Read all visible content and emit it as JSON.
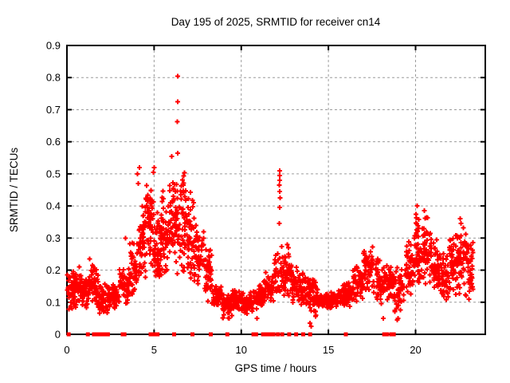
{
  "chart_data": {
    "type": "scatter",
    "title": "Day 195 of 2025, SRMTID for receiver cn14",
    "xlabel": "GPS time / hours",
    "ylabel": "SRMTID / TECUs",
    "xlim": [
      0,
      24
    ],
    "ylim": [
      0,
      0.9
    ],
    "xticks": [
      0,
      5,
      10,
      15,
      20
    ],
    "xtick_labels": [
      "0",
      "5",
      "10",
      "15",
      "20"
    ],
    "yticks": [
      0,
      0.1,
      0.2,
      0.3,
      0.4,
      0.5,
      0.6,
      0.7,
      0.8,
      0.9
    ],
    "ytick_labels": [
      "0",
      "0.1",
      "0.2",
      "0.3",
      "0.4",
      "0.5",
      "0.6",
      "0.7",
      "0.8",
      "0.9"
    ],
    "grid": true,
    "legend": "none",
    "colors": {
      "marker": "#ff0000",
      "grid": "#9c9c9c",
      "axis": "#000000",
      "background": "#ffffff"
    },
    "markers": {
      "plus_size": 7,
      "plus_stroke": 2,
      "square_size": 5
    },
    "seed": 7,
    "series": [
      {
        "name": "SRMTID",
        "marker": "plus",
        "clusters": [
          [
            0.02,
            0.6,
            70,
            0.07,
            0.2
          ],
          [
            0.6,
            1.2,
            65,
            0.08,
            0.19
          ],
          [
            1.2,
            1.8,
            60,
            0.08,
            0.22
          ],
          [
            1.8,
            2.4,
            55,
            0.06,
            0.16
          ],
          [
            2.4,
            3.0,
            55,
            0.07,
            0.16
          ],
          [
            3.0,
            3.6,
            55,
            0.09,
            0.22
          ],
          [
            3.6,
            4.1,
            50,
            0.11,
            0.3
          ],
          [
            4.1,
            4.5,
            50,
            0.14,
            0.45
          ],
          [
            4.5,
            5.0,
            60,
            0.18,
            0.52
          ],
          [
            5.0,
            5.4,
            55,
            0.15,
            0.4
          ],
          [
            5.4,
            5.8,
            50,
            0.17,
            0.45
          ],
          [
            5.8,
            6.3,
            60,
            0.18,
            0.52
          ],
          [
            6.3,
            6.8,
            60,
            0.18,
            0.52
          ],
          [
            6.8,
            7.3,
            55,
            0.17,
            0.5
          ],
          [
            7.3,
            7.8,
            50,
            0.13,
            0.36
          ],
          [
            7.8,
            8.3,
            50,
            0.1,
            0.3
          ],
          [
            8.3,
            8.9,
            50,
            0.08,
            0.16
          ],
          [
            8.9,
            9.5,
            55,
            0.05,
            0.13
          ],
          [
            9.5,
            10.1,
            55,
            0.07,
            0.14
          ],
          [
            10.1,
            10.7,
            55,
            0.06,
            0.14
          ],
          [
            10.7,
            11.3,
            55,
            0.07,
            0.16
          ],
          [
            11.3,
            11.9,
            50,
            0.09,
            0.2
          ],
          [
            11.9,
            12.4,
            40,
            0.11,
            0.28
          ],
          [
            12.4,
            12.9,
            50,
            0.11,
            0.26
          ],
          [
            12.9,
            13.4,
            50,
            0.09,
            0.22
          ],
          [
            13.4,
            13.9,
            45,
            0.08,
            0.2
          ],
          [
            13.9,
            14.4,
            45,
            0.04,
            0.2
          ],
          [
            14.4,
            15.1,
            60,
            0.08,
            0.13
          ],
          [
            15.1,
            15.8,
            60,
            0.08,
            0.14
          ],
          [
            15.8,
            16.4,
            55,
            0.08,
            0.17
          ],
          [
            16.4,
            17.0,
            55,
            0.1,
            0.22
          ],
          [
            17.0,
            17.6,
            55,
            0.12,
            0.28
          ],
          [
            17.6,
            18.2,
            50,
            0.07,
            0.26
          ],
          [
            18.2,
            18.8,
            50,
            0.09,
            0.22
          ],
          [
            18.8,
            19.4,
            50,
            0.04,
            0.22
          ],
          [
            19.4,
            19.9,
            50,
            0.12,
            0.3
          ],
          [
            19.9,
            20.4,
            55,
            0.14,
            0.4
          ],
          [
            20.4,
            20.9,
            55,
            0.14,
            0.38
          ],
          [
            20.9,
            21.4,
            50,
            0.11,
            0.3
          ],
          [
            21.4,
            21.9,
            50,
            0.1,
            0.26
          ],
          [
            21.9,
            22.4,
            50,
            0.12,
            0.33
          ],
          [
            22.4,
            22.9,
            50,
            0.11,
            0.36
          ],
          [
            22.9,
            23.3,
            40,
            0.1,
            0.3
          ]
        ],
        "points": [
          [
            0.7,
            0.21
          ],
          [
            1.3,
            0.235
          ],
          [
            3.35,
            0.3
          ],
          [
            4.05,
            0.5
          ],
          [
            4.1,
            0.47
          ],
          [
            4.15,
            0.52
          ],
          [
            4.95,
            0.505
          ],
          [
            5.0,
            0.52
          ],
          [
            6.0,
            0.555
          ],
          [
            6.33,
            0.662
          ],
          [
            6.35,
            0.804
          ],
          [
            6.35,
            0.725
          ],
          [
            6.36,
            0.564
          ],
          [
            7.85,
            0.32
          ],
          [
            7.85,
            0.3
          ],
          [
            7.85,
            0.28
          ],
          [
            9.3,
            0.05
          ],
          [
            10.9,
            0.05
          ],
          [
            12.18,
            0.345
          ],
          [
            12.19,
            0.465
          ],
          [
            12.2,
            0.395
          ],
          [
            12.2,
            0.445
          ],
          [
            12.2,
            0.495
          ],
          [
            12.2,
            0.51
          ],
          [
            12.21,
            0.48
          ],
          [
            12.22,
            0.425
          ],
          [
            12.65,
            0.28
          ],
          [
            12.7,
            0.27
          ],
          [
            13.95,
            0.035
          ],
          [
            14.0,
            0.025
          ],
          [
            18.15,
            0.05
          ],
          [
            18.95,
            0.045
          ],
          [
            19.0,
            0.05
          ],
          [
            20.1,
            0.4
          ],
          [
            20.5,
            0.385
          ],
          [
            22.55,
            0.36
          ],
          [
            22.6,
            0.345
          ]
        ]
      },
      {
        "name": "zero-level flags",
        "marker": "filled-square",
        "y": 0,
        "x": [
          0.1,
          1.2,
          1.55,
          1.7,
          1.85,
          1.95,
          2.05,
          2.15,
          2.25,
          2.35,
          3.2,
          3.3,
          4.8,
          4.9,
          5.0,
          5.1,
          5.2,
          6.15,
          7.2,
          8.25,
          9.2,
          10.7,
          10.85,
          11.25,
          11.4,
          11.55,
          11.7,
          11.85,
          12.1,
          12.35,
          12.75,
          13.15,
          13.55,
          13.95,
          16.0,
          18.2,
          18.35,
          18.6,
          18.75
        ]
      }
    ]
  }
}
